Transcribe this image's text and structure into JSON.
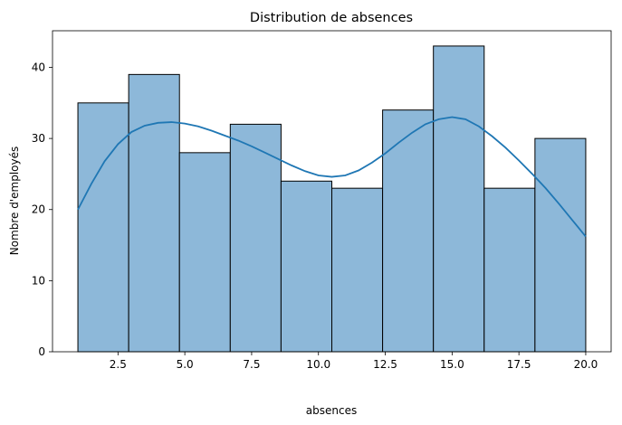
{
  "chart_data": {
    "type": "bar",
    "subtype": "histogram",
    "title": "Distribution de absences",
    "xlabel": "absences",
    "ylabel": "Nombre d'employés",
    "bin_edges": [
      1.0,
      2.9,
      4.8,
      6.7,
      8.6,
      10.5,
      12.4,
      14.3,
      16.2,
      18.1,
      20.0
    ],
    "values": [
      35,
      39,
      28,
      32,
      24,
      23,
      34,
      43,
      23,
      30
    ],
    "xlim": [
      0.05,
      20.95
    ],
    "ylim": [
      0,
      45.15
    ],
    "xticks": [
      2.5,
      5.0,
      7.5,
      10.0,
      12.5,
      15.0,
      17.5,
      20.0
    ],
    "xtick_labels": [
      "2.5",
      "5.0",
      "7.5",
      "10.0",
      "12.5",
      "15.0",
      "17.5",
      "20.0"
    ],
    "yticks": [
      0,
      10,
      20,
      30,
      40
    ],
    "ytick_labels": [
      "0",
      "10",
      "20",
      "30",
      "40"
    ],
    "grid": false,
    "legend": "none",
    "bar_color": "#8db8d9",
    "bar_edge_color": "#000000",
    "kde": {
      "color": "#1f77b4",
      "x": [
        1.0,
        1.5,
        2.0,
        2.5,
        3.0,
        3.5,
        4.0,
        4.5,
        5.0,
        5.5,
        6.0,
        6.5,
        7.0,
        7.5,
        8.0,
        8.5,
        9.0,
        9.5,
        10.0,
        10.5,
        11.0,
        11.5,
        12.0,
        12.5,
        13.0,
        13.5,
        14.0,
        14.5,
        15.0,
        15.5,
        16.0,
        16.5,
        17.0,
        17.5,
        18.0,
        18.5,
        19.0,
        19.5,
        20.0
      ],
      "y": [
        20.0,
        23.6,
        26.8,
        29.2,
        30.9,
        31.8,
        32.2,
        32.3,
        32.1,
        31.7,
        31.1,
        30.4,
        29.7,
        28.9,
        28.0,
        27.1,
        26.2,
        25.4,
        24.8,
        24.6,
        24.8,
        25.5,
        26.6,
        27.9,
        29.4,
        30.8,
        32.0,
        32.7,
        33.0,
        32.7,
        31.7,
        30.3,
        28.7,
        26.9,
        25.0,
        23.0,
        20.8,
        18.5,
        16.2
      ]
    }
  }
}
